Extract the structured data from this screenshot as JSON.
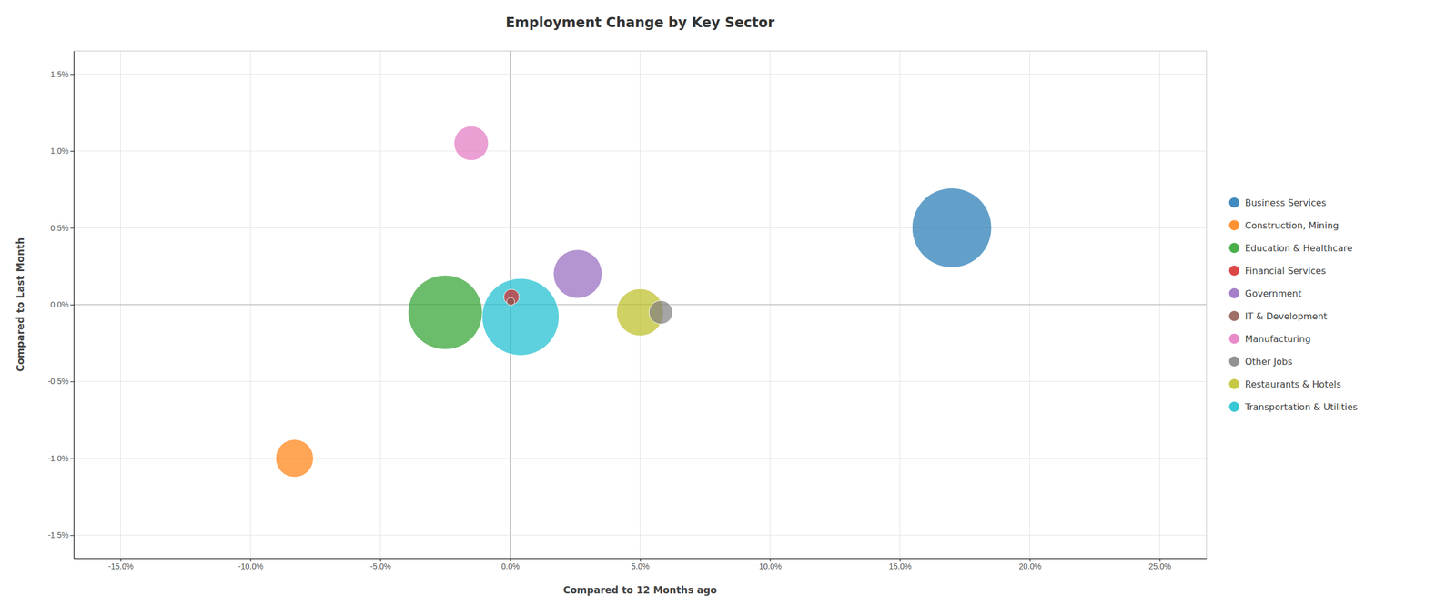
{
  "chart_data": {
    "type": "scatter",
    "title": "Employment Change by Key Sector",
    "xlabel": "Compared to 12 Months ago",
    "ylabel": "Compared to Last Month",
    "xlim": [
      -0.168,
      0.268
    ],
    "ylim": [
      -0.0165,
      0.0165
    ],
    "xticks": [
      {
        "value": -0.15,
        "label": "-15.0%"
      },
      {
        "value": -0.1,
        "label": "-10.0%"
      },
      {
        "value": -0.05,
        "label": "-5.0%"
      },
      {
        "value": 0.0,
        "label": "0.0%"
      },
      {
        "value": 0.05,
        "label": "5.0%"
      },
      {
        "value": 0.1,
        "label": "10.0%"
      },
      {
        "value": 0.15,
        "label": "15.0%"
      },
      {
        "value": 0.2,
        "label": "20.0%"
      },
      {
        "value": 0.25,
        "label": "25.0%"
      }
    ],
    "yticks": [
      {
        "value": -0.015,
        "label": "-1.5%"
      },
      {
        "value": -0.01,
        "label": "-1.0%"
      },
      {
        "value": -0.005,
        "label": "-0.5%"
      },
      {
        "value": 0.0,
        "label": "0.0%"
      },
      {
        "value": 0.005,
        "label": "0.5%"
      },
      {
        "value": 0.01,
        "label": "1.0%"
      },
      {
        "value": 0.015,
        "label": "1.5%"
      }
    ],
    "grid": true,
    "legend": "right",
    "series": [
      {
        "name": "Business Services",
        "x": [
          0.17
        ],
        "values": [
          0.005
        ],
        "size": [
          8000
        ]
      },
      {
        "name": "Construction, Mining",
        "x": [
          -0.083
        ],
        "values": [
          -0.01
        ],
        "size": [
          1800
        ]
      },
      {
        "name": "Education & Healthcare",
        "x": [
          -0.025
        ],
        "values": [
          -0.0005
        ],
        "size": [
          7000
        ]
      },
      {
        "name": "Financial Services",
        "x": [
          0.0005
        ],
        "values": [
          0.0005
        ],
        "size": [
          300
        ]
      },
      {
        "name": "Government",
        "x": [
          0.026
        ],
        "values": [
          0.002
        ],
        "size": [
          3000
        ]
      },
      {
        "name": "IT & Development",
        "x": [
          0.0002
        ],
        "values": [
          0.0002
        ],
        "size": [
          80
        ]
      },
      {
        "name": "Manufacturing",
        "x": [
          -0.015
        ],
        "values": [
          0.0105
        ],
        "size": [
          1500
        ]
      },
      {
        "name": "Other Jobs",
        "x": [
          0.058
        ],
        "values": [
          -0.0005
        ],
        "size": [
          700
        ]
      },
      {
        "name": "Restaurants & Hotels",
        "x": [
          0.05
        ],
        "values": [
          -0.0005
        ],
        "size": [
          2800
        ]
      },
      {
        "name": "Transportation & Utilities",
        "x": [
          0.004
        ],
        "values": [
          -0.0008
        ],
        "size": [
          7500
        ]
      }
    ]
  }
}
